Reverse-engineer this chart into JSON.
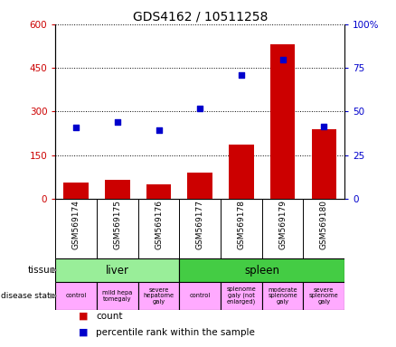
{
  "title": "GDS4162 / 10511258",
  "samples": [
    "GSM569174",
    "GSM569175",
    "GSM569176",
    "GSM569177",
    "GSM569178",
    "GSM569179",
    "GSM569180"
  ],
  "counts": [
    55,
    65,
    50,
    90,
    185,
    530,
    240
  ],
  "percentile_ranks": [
    245,
    265,
    235,
    310,
    425,
    480,
    250
  ],
  "left_ylim": [
    0,
    600
  ],
  "right_ylim": [
    0,
    100
  ],
  "left_yticks": [
    0,
    150,
    300,
    450,
    600
  ],
  "right_yticks": [
    0,
    25,
    50,
    75,
    100
  ],
  "left_yticklabels": [
    "0",
    "150",
    "300",
    "450",
    "600"
  ],
  "right_yticklabels": [
    "0",
    "25",
    "50",
    "75",
    "100%"
  ],
  "bar_color": "#cc0000",
  "dot_color": "#0000cc",
  "tissue_groups": [
    {
      "label": "liver",
      "start": 0,
      "end": 3,
      "color": "#99ee99"
    },
    {
      "label": "spleen",
      "start": 3,
      "end": 7,
      "color": "#44cc44"
    }
  ],
  "disease_states": [
    {
      "label": "control",
      "start": 0,
      "end": 1,
      "color": "#ffaaff"
    },
    {
      "label": "mild hepa\ntomegaly",
      "start": 1,
      "end": 2,
      "color": "#ffaaff"
    },
    {
      "label": "severe\nhepatome\ngaly",
      "start": 2,
      "end": 3,
      "color": "#ffaaff"
    },
    {
      "label": "control",
      "start": 3,
      "end": 4,
      "color": "#ffaaff"
    },
    {
      "label": "splenome\ngaly (not\nenlarged)",
      "start": 4,
      "end": 5,
      "color": "#ffaaff"
    },
    {
      "label": "moderate\nsplenome\ngaly",
      "start": 5,
      "end": 6,
      "color": "#ffaaff"
    },
    {
      "label": "severe\nsplenome\ngaly",
      "start": 6,
      "end": 7,
      "color": "#ffaaff"
    }
  ],
  "title_fontsize": 10,
  "axis_label_color_left": "#cc0000",
  "axis_label_color_right": "#0000cc",
  "bg_color": "#ffffff",
  "xticklabel_area_color": "#cccccc",
  "bar_width": 0.6
}
